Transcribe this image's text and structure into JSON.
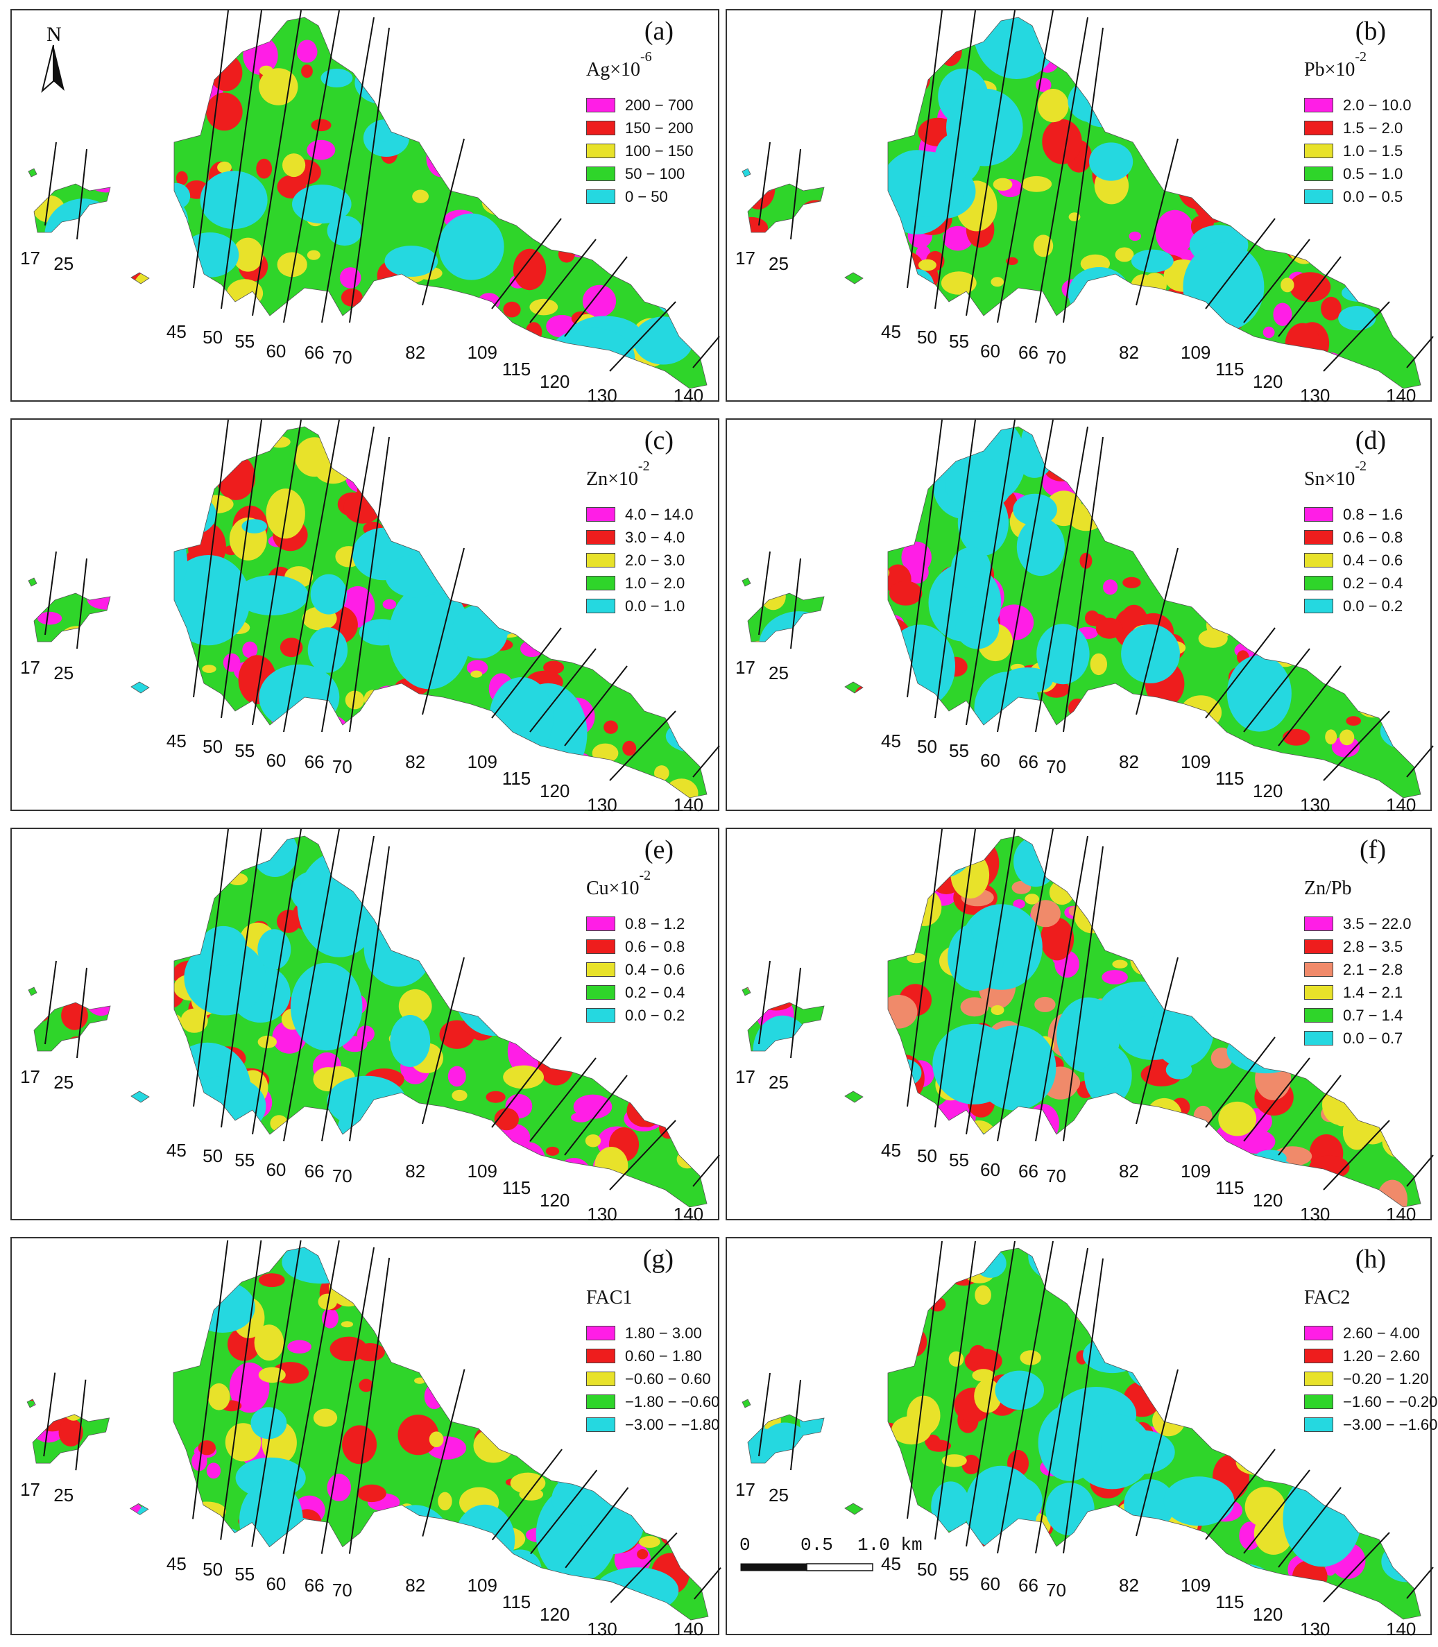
{
  "line_labels": [
    "17",
    "25",
    "45",
    "50",
    "55",
    "60",
    "66",
    "70",
    "82",
    "109",
    "115",
    "120",
    "130",
    "140"
  ],
  "north_letter": "N",
  "north_icon": "north-arrow-icon",
  "palette": {
    "magenta": "#ff1ee6",
    "red": "#ee1d1d",
    "salmon": "#f08a6a",
    "yellow": "#e8e22a",
    "green": "#2fd52a",
    "cyan": "#25d8e0"
  },
  "panels": [
    {
      "label": "(a)",
      "title": "Ag×10",
      "exp": "-6",
      "legend": [
        {
          "range": "200 − 700",
          "color": "#ff1ee6"
        },
        {
          "range": "150 − 200",
          "color": "#ee1d1d"
        },
        {
          "range": "100 − 150",
          "color": "#e8e22a"
        },
        {
          "range": "50 − 100",
          "color": "#2fd52a"
        },
        {
          "range": "0 − 50",
          "color": "#25d8e0"
        }
      ]
    },
    {
      "label": "(b)",
      "title": "Pb×10",
      "exp": "-2",
      "legend": [
        {
          "range": "2.0 − 10.0",
          "color": "#ff1ee6"
        },
        {
          "range": "1.5 − 2.0",
          "color": "#ee1d1d"
        },
        {
          "range": "1.0 − 1.5",
          "color": "#e8e22a"
        },
        {
          "range": "0.5 − 1.0",
          "color": "#2fd52a"
        },
        {
          "range": "0.0 − 0.5",
          "color": "#25d8e0"
        }
      ]
    },
    {
      "label": "(c)",
      "title": "Zn×10",
      "exp": "-2",
      "legend": [
        {
          "range": "4.0 − 14.0",
          "color": "#ff1ee6"
        },
        {
          "range": "3.0 − 4.0",
          "color": "#ee1d1d"
        },
        {
          "range": "2.0 − 3.0",
          "color": "#e8e22a"
        },
        {
          "range": "1.0 − 2.0",
          "color": "#2fd52a"
        },
        {
          "range": "0.0 − 1.0",
          "color": "#25d8e0"
        }
      ]
    },
    {
      "label": "(d)",
      "title": "Sn×10",
      "exp": "-2",
      "legend": [
        {
          "range": "0.8 − 1.6",
          "color": "#ff1ee6"
        },
        {
          "range": "0.6 − 0.8",
          "color": "#ee1d1d"
        },
        {
          "range": "0.4 − 0.6",
          "color": "#e8e22a"
        },
        {
          "range": "0.2 − 0.4",
          "color": "#2fd52a"
        },
        {
          "range": "0.0 − 0.2",
          "color": "#25d8e0"
        }
      ]
    },
    {
      "label": "(e)",
      "title": "Cu×10",
      "exp": "-2",
      "legend": [
        {
          "range": "0.8 − 1.2",
          "color": "#ff1ee6"
        },
        {
          "range": "0.6 − 0.8",
          "color": "#ee1d1d"
        },
        {
          "range": "0.4 − 0.6",
          "color": "#e8e22a"
        },
        {
          "range": "0.2 − 0.4",
          "color": "#2fd52a"
        },
        {
          "range": "0.0 − 0.2",
          "color": "#25d8e0"
        }
      ]
    },
    {
      "label": "(f)",
      "title": "Zn/Pb",
      "exp": "",
      "legend": [
        {
          "range": "3.5 − 22.0",
          "color": "#ff1ee6"
        },
        {
          "range": "2.8 − 3.5",
          "color": "#ee1d1d"
        },
        {
          "range": "2.1 − 2.8",
          "color": "#f08a6a"
        },
        {
          "range": "1.4 − 2.1",
          "color": "#e8e22a"
        },
        {
          "range": "0.7 − 1.4",
          "color": "#2fd52a"
        },
        {
          "range": "0.0 − 0.7",
          "color": "#25d8e0"
        }
      ]
    },
    {
      "label": "(g)",
      "title": "FAC1",
      "exp": "",
      "legend": [
        {
          "range": "1.80 − 3.00",
          "color": "#ff1ee6"
        },
        {
          "range": "0.60 − 1.80",
          "color": "#ee1d1d"
        },
        {
          "range": "−0.60 − 0.60",
          "color": "#e8e22a"
        },
        {
          "range": "−1.80 − −0.60",
          "color": "#2fd52a"
        },
        {
          "range": "−3.00 − −1.80",
          "color": "#25d8e0"
        }
      ]
    },
    {
      "label": "(h)",
      "title": "FAC2",
      "exp": "",
      "legend": [
        {
          "range": "2.60 − 4.00",
          "color": "#ff1ee6"
        },
        {
          "range": "1.20 − 2.60",
          "color": "#ee1d1d"
        },
        {
          "range": "−0.20 − 1.20",
          "color": "#e8e22a"
        },
        {
          "range": "−1.60 − −0.20",
          "color": "#2fd52a"
        },
        {
          "range": "−3.00 − −1.60",
          "color": "#25d8e0"
        }
      ]
    }
  ],
  "scale_bar": {
    "tick_0": "0",
    "tick_1": "0.5",
    "tick_2": "1.0 km"
  }
}
